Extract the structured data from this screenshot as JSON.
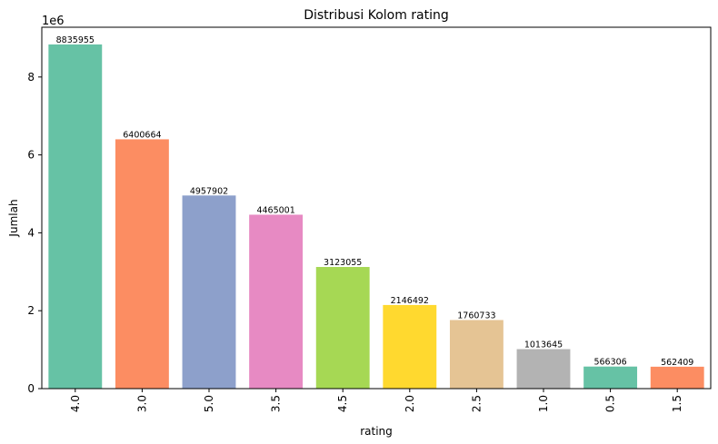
{
  "chart_data": {
    "type": "bar",
    "title": "Distribusi Kolom rating",
    "xlabel": "rating",
    "ylabel": "Jumlah",
    "y_multiplier_label": "1e6",
    "categories": [
      "4.0",
      "3.0",
      "5.0",
      "3.5",
      "4.5",
      "2.0",
      "2.5",
      "1.0",
      "0.5",
      "1.5"
    ],
    "values": [
      8835955,
      6400664,
      4957902,
      4465001,
      3123055,
      2146492,
      1760733,
      1013645,
      566306,
      562409
    ],
    "bar_labels": [
      "8835955",
      "6400664",
      "4957902",
      "4465001",
      "3123055",
      "2146492",
      "1760733",
      "1013645",
      "566306",
      "562409"
    ],
    "colors": [
      "#66c2a5",
      "#fc8d62",
      "#8da0cb",
      "#e78ac3",
      "#a6d854",
      "#ffd92f",
      "#e5c494",
      "#b3b3b3",
      "#66c2a5",
      "#fc8d62"
    ],
    "yticks": [
      0,
      2,
      4,
      6,
      8
    ],
    "ytick_labels": [
      "0",
      "2",
      "4",
      "6",
      "8"
    ],
    "ylim": [
      0,
      9277752
    ],
    "grid": false,
    "legend": "none"
  }
}
